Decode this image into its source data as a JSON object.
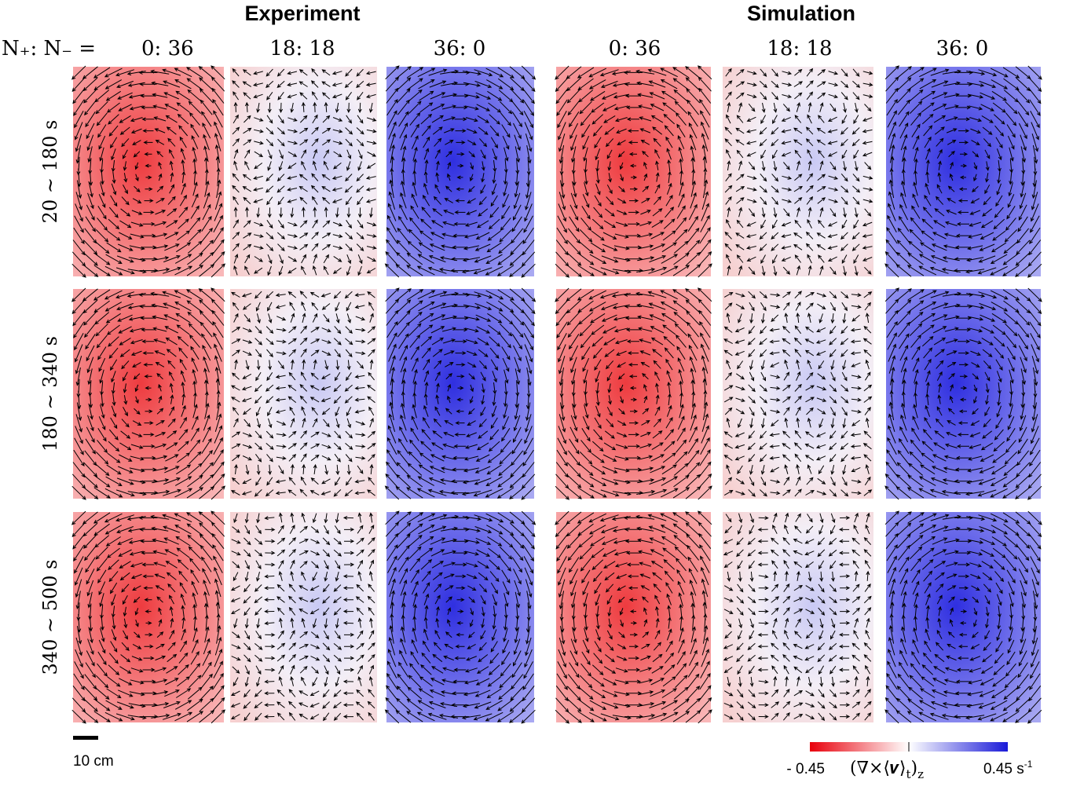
{
  "groups": [
    "Experiment",
    "Simulation"
  ],
  "ratio_prefix": "N₊: N₋ =",
  "columns": [
    "0: 36",
    "18: 18",
    "36: 0",
    "0: 36",
    "18: 18",
    "36: 0"
  ],
  "rows": [
    "20 ~ 180 s",
    "180 ~ 340 s",
    "340 ~ 500 s"
  ],
  "scale_bar": "10 cm",
  "colorbar": {
    "min_label": "- 0.45",
    "max_label": "0.45",
    "unit": "s",
    "unit_exponent": "-1",
    "quantity": "(∇×⟨𝒗⟩",
    "inner_subscript": "t",
    "close": ")",
    "outer_subscript": "z"
  }
}
